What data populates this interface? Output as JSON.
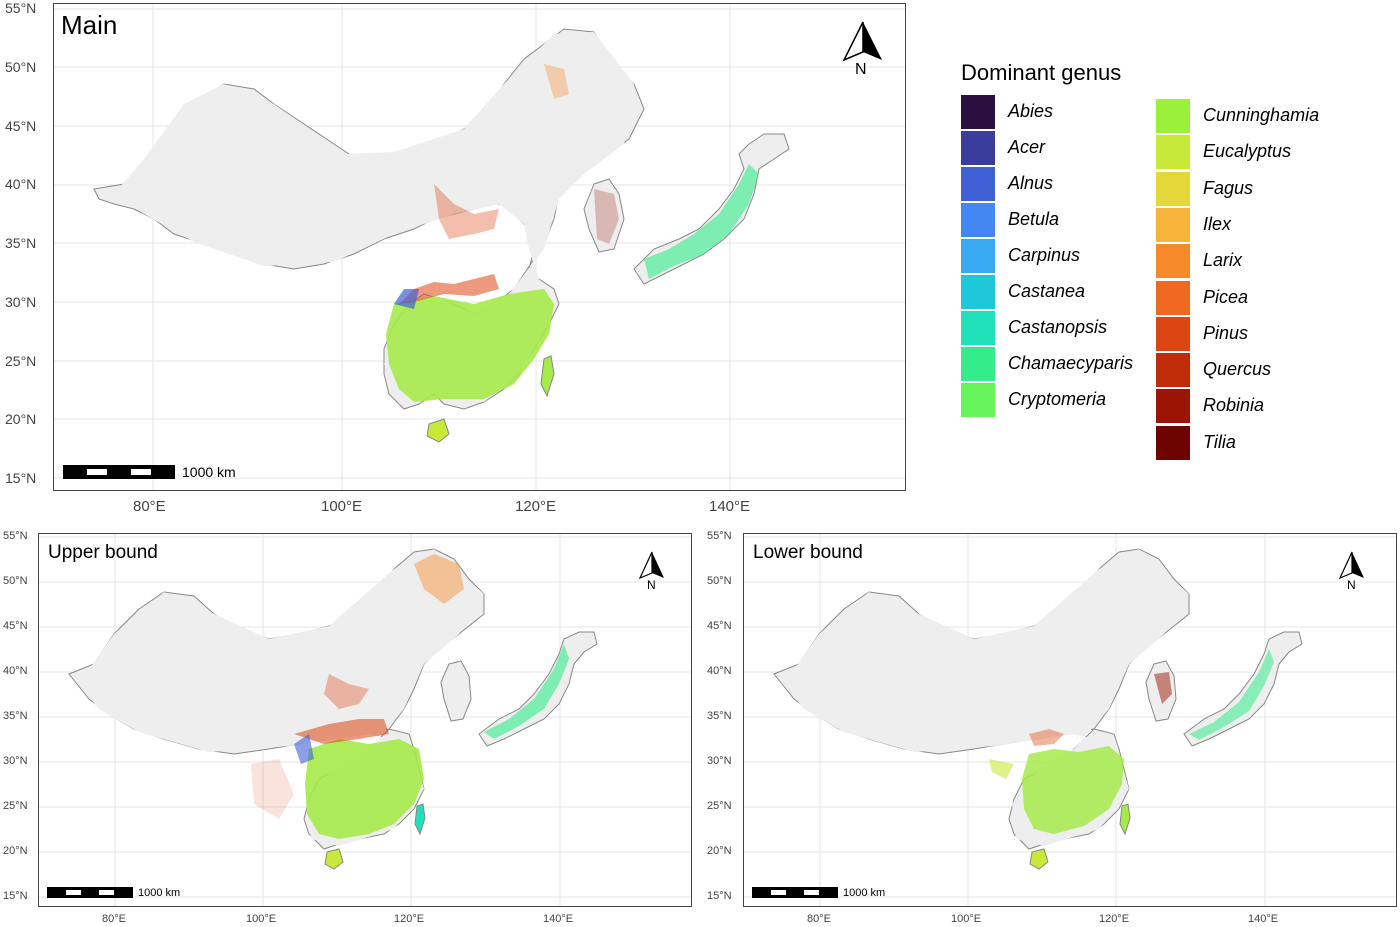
{
  "panels": {
    "main": {
      "title": "Main"
    },
    "upper": {
      "title": "Upper bound"
    },
    "lower": {
      "title": "Lower bound"
    }
  },
  "axes": {
    "lat_labels": [
      "55°N",
      "50°N",
      "45°N",
      "40°N",
      "35°N",
      "30°N",
      "25°N",
      "20°N",
      "15°N"
    ],
    "lon_labels": [
      "80°E",
      "100°E",
      "120°E",
      "140°E"
    ]
  },
  "north_arrow": {
    "label": "N"
  },
  "scale_bar": {
    "label": "1000 km"
  },
  "legend": {
    "title": "Dominant genus",
    "items": [
      {
        "label": "Abies",
        "color": "#2b0f3f"
      },
      {
        "label": "Acer",
        "color": "#3b3d9c"
      },
      {
        "label": "Alnus",
        "color": "#4060d6"
      },
      {
        "label": "Betula",
        "color": "#4487f2"
      },
      {
        "label": "Carpinus",
        "color": "#38aaf2"
      },
      {
        "label": "Castanea",
        "color": "#1fc8d8"
      },
      {
        "label": "Castanopsis",
        "color": "#1fe0b8"
      },
      {
        "label": "Chamaecyparis",
        "color": "#34ed8a"
      },
      {
        "label": "Cryptomeria",
        "color": "#66f55a"
      },
      {
        "label": "Cunninghamia",
        "color": "#9af03a"
      },
      {
        "label": "Eucalyptus",
        "color": "#c6e93a"
      },
      {
        "label": "Fagus",
        "color": "#e3d73a"
      },
      {
        "label": "Ilex",
        "color": "#f6b43a"
      },
      {
        "label": "Larix",
        "color": "#f68a2a"
      },
      {
        "label": "Picea",
        "color": "#ef6a20"
      },
      {
        "label": "Pinus",
        "color": "#dc4512"
      },
      {
        "label": "Quercus",
        "color": "#c02b08"
      },
      {
        "label": "Robinia",
        "color": "#9c1504"
      },
      {
        "label": "Tilia",
        "color": "#6d0402"
      }
    ]
  },
  "colors": {
    "land": "#eeeeee",
    "border": "#888888",
    "grid": "#e4e4e4",
    "forest_main": "#a6ea4a",
    "forest_secondary": "#c6e93a"
  }
}
